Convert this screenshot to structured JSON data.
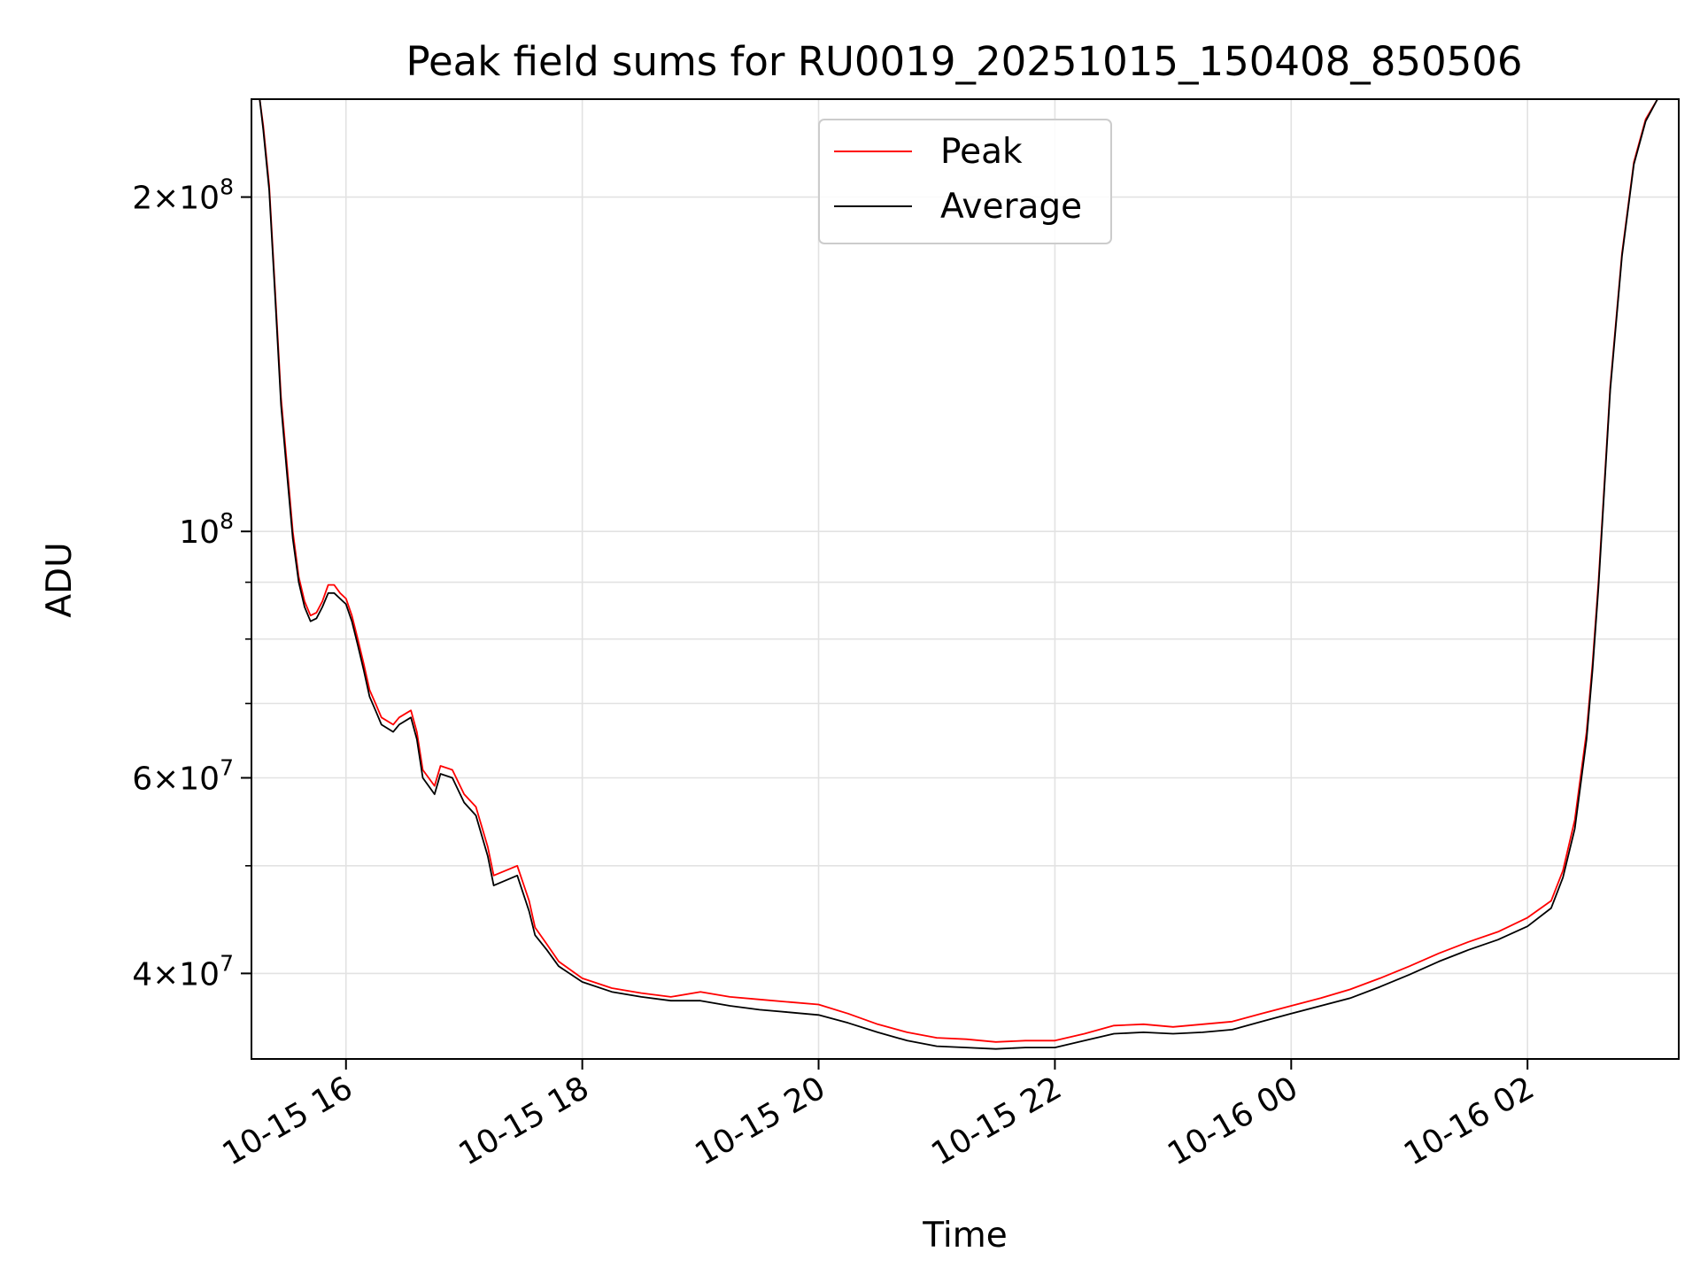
{
  "chart_data": {
    "type": "line",
    "title": "Peak field sums for RU0019_20251015_150408_850506",
    "xlabel": "Time",
    "ylabel": "ADU",
    "yscale": "log",
    "xlim_hours": [
      15.2,
      27.28
    ],
    "ylim": [
      33500000,
      245000000
    ],
    "grid": true,
    "legend_position": "upper-center",
    "x_ticks": [
      {
        "hour": 16,
        "label": "10-15 16"
      },
      {
        "hour": 18,
        "label": "10-15 18"
      },
      {
        "hour": 20,
        "label": "10-15 20"
      },
      {
        "hour": 22,
        "label": "10-15 22"
      },
      {
        "hour": 24,
        "label": "10-16 00"
      },
      {
        "hour": 26,
        "label": "10-16 02"
      }
    ],
    "y_ticks_major": [
      {
        "value": 40000000,
        "mantissa": "4",
        "exp": "7"
      },
      {
        "value": 60000000,
        "mantissa": "6",
        "exp": "7"
      },
      {
        "value": 100000000,
        "mantissa": "",
        "exp": "8"
      },
      {
        "value": 200000000,
        "mantissa": "2",
        "exp": "8"
      }
    ],
    "y_ticks_minor": [
      50000000,
      70000000,
      80000000,
      90000000
    ],
    "series": [
      {
        "name": "Peak",
        "color": "#ff0000",
        "hours": [
          15.2,
          15.27,
          15.3,
          15.35,
          15.4,
          15.45,
          15.5,
          15.55,
          15.6,
          15.65,
          15.7,
          15.75,
          15.8,
          15.85,
          15.9,
          15.95,
          16.0,
          16.05,
          16.1,
          16.15,
          16.2,
          16.25,
          16.3,
          16.4,
          16.45,
          16.55,
          16.6,
          16.65,
          16.75,
          16.8,
          16.9,
          17.0,
          17.1,
          17.2,
          17.25,
          17.35,
          17.45,
          17.55,
          17.6,
          17.7,
          17.8,
          18.0,
          18.25,
          18.5,
          18.75,
          19.0,
          19.25,
          19.5,
          19.75,
          20.0,
          20.25,
          20.5,
          20.75,
          21.0,
          21.25,
          21.5,
          21.75,
          22.0,
          22.25,
          22.5,
          22.75,
          23.0,
          23.25,
          23.5,
          23.75,
          24.0,
          24.25,
          24.5,
          24.75,
          25.0,
          25.25,
          25.5,
          25.75,
          26.0,
          26.2,
          26.3,
          26.4,
          26.5,
          26.55,
          26.6,
          26.65,
          26.7,
          26.8,
          26.9,
          27.0,
          27.1,
          27.2,
          27.28
        ],
        "values": [
          245000000,
          245000000,
          232000000,
          205000000,
          165000000,
          132000000,
          115000000,
          100000000,
          91000000,
          86500000,
          84000000,
          84500000,
          86500000,
          89500000,
          89500000,
          88000000,
          87000000,
          84000000,
          80000000,
          76000000,
          72000000,
          70000000,
          68000000,
          67000000,
          68000000,
          69000000,
          66000000,
          61000000,
          59000000,
          61500000,
          61000000,
          58000000,
          56500000,
          52000000,
          49000000,
          49500000,
          50000000,
          46500000,
          44000000,
          42500000,
          41000000,
          39600000,
          38800000,
          38400000,
          38100000,
          38500000,
          38100000,
          37900000,
          37700000,
          37500000,
          36800000,
          36000000,
          35400000,
          35000000,
          34900000,
          34700000,
          34800000,
          34800000,
          35300000,
          35900000,
          36000000,
          35800000,
          36000000,
          36200000,
          36800000,
          37400000,
          38000000,
          38700000,
          39600000,
          40600000,
          41700000,
          42700000,
          43600000,
          44900000,
          46500000,
          49500000,
          55000000,
          66000000,
          76000000,
          90000000,
          110000000,
          135000000,
          178000000,
          215000000,
          235000000,
          245000000,
          245000000,
          245000000
        ]
      },
      {
        "name": "Average",
        "color": "#000000",
        "hours": [
          15.2,
          15.27,
          15.3,
          15.35,
          15.4,
          15.45,
          15.5,
          15.55,
          15.6,
          15.65,
          15.7,
          15.75,
          15.8,
          15.85,
          15.9,
          15.95,
          16.0,
          16.05,
          16.1,
          16.15,
          16.2,
          16.25,
          16.3,
          16.4,
          16.45,
          16.55,
          16.6,
          16.65,
          16.75,
          16.8,
          16.9,
          17.0,
          17.1,
          17.2,
          17.25,
          17.35,
          17.45,
          17.55,
          17.6,
          17.7,
          17.8,
          18.0,
          18.25,
          18.5,
          18.75,
          19.0,
          19.25,
          19.5,
          19.75,
          20.0,
          20.25,
          20.5,
          20.75,
          21.0,
          21.25,
          21.5,
          21.75,
          22.0,
          22.25,
          22.5,
          22.75,
          23.0,
          23.25,
          23.5,
          23.75,
          24.0,
          24.25,
          24.5,
          24.75,
          25.0,
          25.25,
          25.5,
          25.75,
          26.0,
          26.2,
          26.3,
          26.4,
          26.5,
          26.55,
          26.6,
          26.65,
          26.7,
          26.8,
          26.9,
          27.0,
          27.1,
          27.2,
          27.28
        ],
        "values": [
          245000000,
          245000000,
          230000000,
          203000000,
          163000000,
          130000000,
          113000000,
          98500000,
          90000000,
          85500000,
          83000000,
          83500000,
          85500000,
          88000000,
          88000000,
          87000000,
          86000000,
          83000000,
          79000000,
          75000000,
          71000000,
          69000000,
          67000000,
          66000000,
          67000000,
          68000000,
          65000000,
          60000000,
          58000000,
          60500000,
          60000000,
          57000000,
          55500000,
          51000000,
          48000000,
          48500000,
          49000000,
          45500000,
          43300000,
          42000000,
          40600000,
          39300000,
          38500000,
          38100000,
          37800000,
          37800000,
          37400000,
          37100000,
          36900000,
          36700000,
          36100000,
          35400000,
          34800000,
          34400000,
          34300000,
          34200000,
          34300000,
          34300000,
          34800000,
          35300000,
          35400000,
          35300000,
          35400000,
          35600000,
          36200000,
          36800000,
          37400000,
          38000000,
          38900000,
          39900000,
          41000000,
          42000000,
          42900000,
          44100000,
          45800000,
          48800000,
          54000000,
          65000000,
          75000000,
          89000000,
          109000000,
          134000000,
          177000000,
          214000000,
          234000000,
          245000000,
          245000000,
          245000000
        ]
      }
    ]
  }
}
